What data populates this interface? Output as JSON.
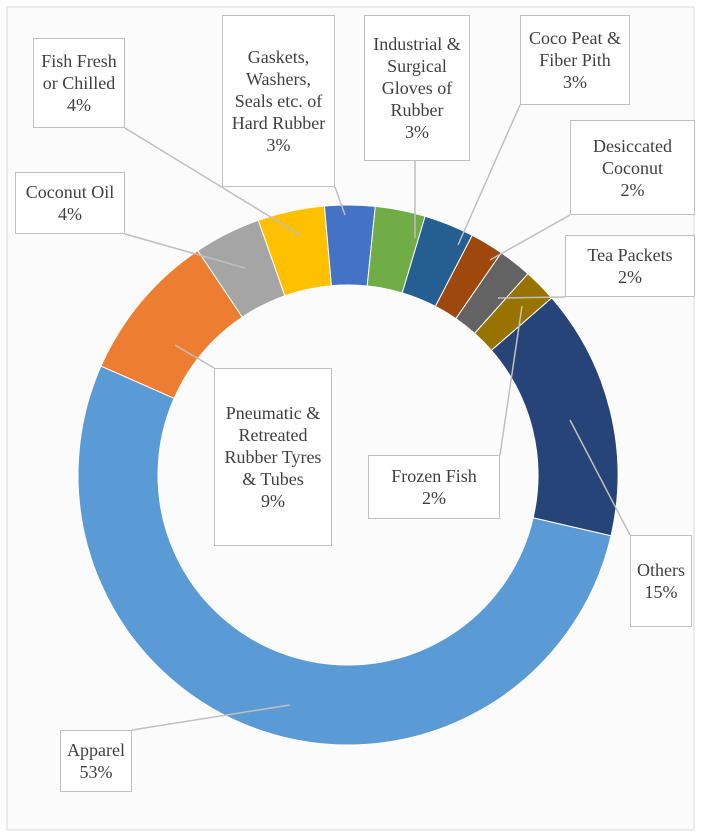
{
  "chart_data": {
    "type": "donut",
    "categories": [
      "Apparel",
      "Pneumatic & Retreated Rubber Tyres & Tubes",
      "Coconut Oil",
      "Fish Fresh or Chilled",
      "Gaskets, Washers, Seals etc. of Hard Rubber",
      "Industrial & Surgical Gloves of Rubber",
      "Coco Peat & Fiber Pith",
      "Desiccated Coconut",
      "Tea Packets",
      "Frozen Fish",
      "Others"
    ],
    "values": [
      53,
      9,
      4,
      4,
      3,
      3,
      3,
      2,
      2,
      2,
      15
    ],
    "value_labels": [
      "53%",
      "9%",
      "4%",
      "4%",
      "3%",
      "3%",
      "3%",
      "2%",
      "2%",
      "2%",
      "15%"
    ],
    "colors": [
      "#5b9bd5",
      "#ed7d31",
      "#a5a5a5",
      "#ffc000",
      "#4472c4",
      "#70ad47",
      "#255e91",
      "#9e480e",
      "#636363",
      "#997300",
      "#264478"
    ]
  }
}
